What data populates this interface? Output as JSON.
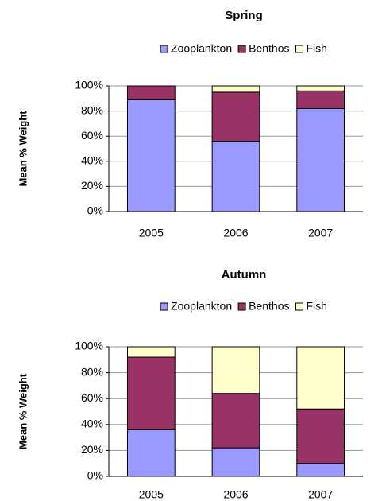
{
  "chart_data": [
    {
      "type": "stacked_bar",
      "title": "Spring",
      "y_label": "Mean % Weight",
      "categories": [
        "2005",
        "2006",
        "2007"
      ],
      "series": [
        {
          "name": "Zooplankton",
          "color": "#9999ff",
          "values": [
            89,
            56,
            82
          ]
        },
        {
          "name": "Benthos",
          "color": "#993366",
          "values": [
            11,
            39,
            14
          ]
        },
        {
          "name": "Fish",
          "color": "#ffffcc",
          "values": [
            0,
            5,
            4
          ]
        }
      ],
      "ylim": [
        0,
        100
      ],
      "yticks": [
        {
          "value": 0,
          "label": "0%"
        },
        {
          "value": 20,
          "label": "20%"
        },
        {
          "value": 40,
          "label": "40%"
        },
        {
          "value": 60,
          "label": "60%"
        },
        {
          "value": 80,
          "label": "80%"
        },
        {
          "value": 100,
          "label": "100%"
        }
      ],
      "grid": true,
      "legend": "top"
    },
    {
      "type": "stacked_bar",
      "title": "Autumn",
      "y_label": "Mean % Weight",
      "categories": [
        "2005",
        "2006",
        "2007"
      ],
      "series": [
        {
          "name": "Zooplankton",
          "color": "#9999ff",
          "values": [
            36,
            22,
            10
          ]
        },
        {
          "name": "Benthos",
          "color": "#993366",
          "values": [
            56,
            42,
            42
          ]
        },
        {
          "name": "Fish",
          "color": "#ffffcc",
          "values": [
            8,
            36,
            48
          ]
        }
      ],
      "ylim": [
        0,
        100
      ],
      "yticks": [
        {
          "value": 0,
          "label": "0%"
        },
        {
          "value": 20,
          "label": "20%"
        },
        {
          "value": 40,
          "label": "40%"
        },
        {
          "value": 60,
          "label": "60%"
        },
        {
          "value": 80,
          "label": "80%"
        },
        {
          "value": 100,
          "label": "100%"
        }
      ],
      "grid": true,
      "legend": "top"
    }
  ]
}
